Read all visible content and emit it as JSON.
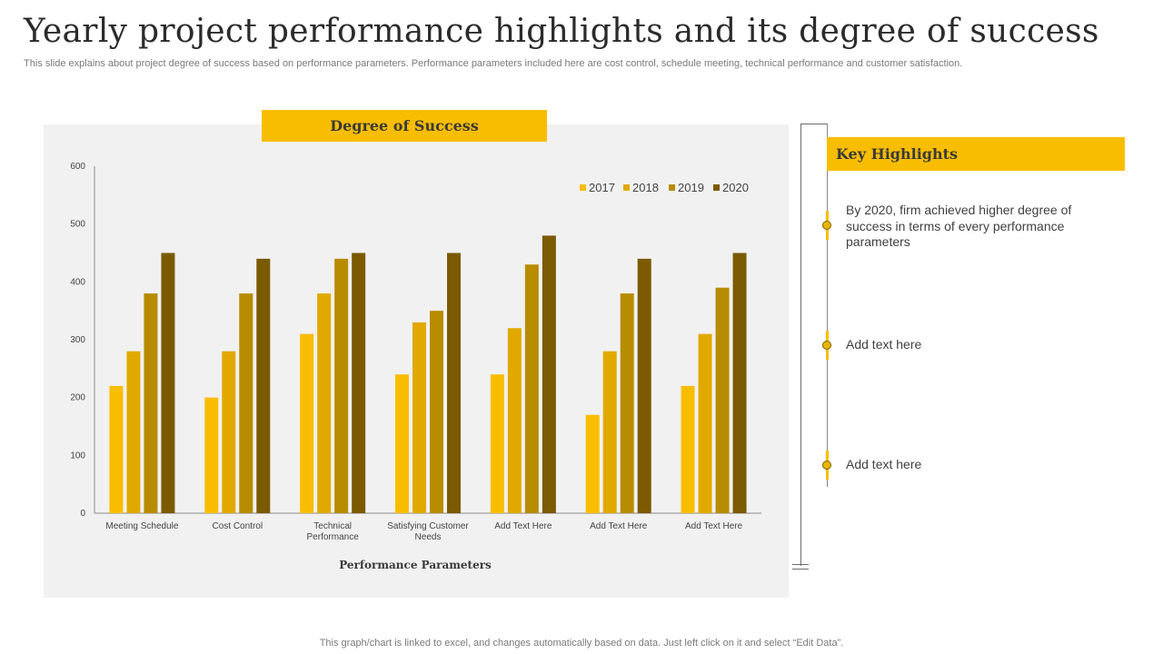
{
  "slide": {
    "title": "Yearly project performance highlights and its degree of success",
    "subtitle": "This slide explains about project degree of success based on performance parameters. Performance parameters included here are cost control, schedule meeting, technical performance and customer satisfaction.",
    "footer": "This graph/chart is linked to excel,  and changes automatically based on data. Just left click on it and select “Edit Data”."
  },
  "chart_header": "Degree of Success",
  "chart_data": {
    "type": "bar",
    "title": "Degree of Success",
    "xlabel": "Performance Parameters",
    "ylabel": "",
    "ylim": [
      0,
      600
    ],
    "yticks": [
      0,
      100,
      200,
      300,
      400,
      500,
      600
    ],
    "legend_position": "top-right",
    "categories": [
      [
        "Meeting Schedule"
      ],
      [
        "Cost Control"
      ],
      [
        "Technical",
        "Performance"
      ],
      [
        "Satisfying Customer",
        "Needs"
      ],
      [
        "Add Text Here"
      ],
      [
        "Add Text Here"
      ],
      [
        "Add Text Here"
      ]
    ],
    "series": [
      {
        "name": "2017",
        "color": "#f9bd00",
        "values": [
          220,
          200,
          310,
          240,
          240,
          170,
          220
        ]
      },
      {
        "name": "2018",
        "color": "#e1a900",
        "values": [
          280,
          280,
          380,
          330,
          320,
          280,
          310
        ]
      },
      {
        "name": "2019",
        "color": "#b88c00",
        "values": [
          380,
          380,
          440,
          350,
          430,
          380,
          390
        ]
      },
      {
        "name": "2020",
        "color": "#7b5a00",
        "values": [
          450,
          440,
          450,
          450,
          480,
          440,
          450
        ]
      }
    ]
  },
  "key_highlights": {
    "title": "Key Highlights",
    "items": [
      "By 2020, firm achieved higher degree of success in terms of every performance parameters",
      "Add text here",
      "Add text here"
    ]
  },
  "colors": {
    "accent": "#f9bd00",
    "panel": "#f1f1f1"
  }
}
